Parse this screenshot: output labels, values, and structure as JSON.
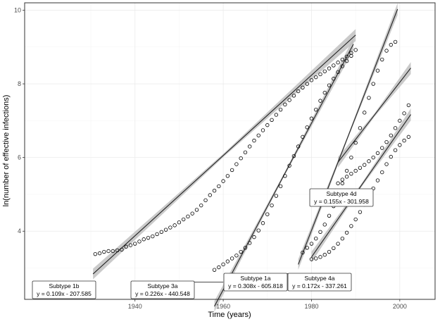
{
  "chart_data": {
    "type": "scatter",
    "title": "",
    "xlabel": "Time (years)",
    "ylabel": "ln(number of effective infections)",
    "xlim": [
      1915,
      2008
    ],
    "ylim": [
      2.15,
      10.2
    ],
    "x_ticks": [
      1940,
      1960,
      1980,
      2000
    ],
    "y_ticks": [
      4,
      6,
      8,
      10
    ],
    "grid": true,
    "legend": "none",
    "series": [
      {
        "name": "Subtype 1b",
        "points": [
          [
            1931,
            3.38
          ],
          [
            1932,
            3.4
          ],
          [
            1933,
            3.44
          ],
          [
            1934,
            3.46
          ],
          [
            1935,
            3.46
          ],
          [
            1936,
            3.48
          ],
          [
            1937,
            3.5
          ],
          [
            1938,
            3.58
          ],
          [
            1939,
            3.62
          ],
          [
            1940,
            3.66
          ],
          [
            1941,
            3.72
          ],
          [
            1942,
            3.78
          ],
          [
            1943,
            3.82
          ],
          [
            1944,
            3.86
          ],
          [
            1945,
            3.92
          ],
          [
            1946,
            3.98
          ],
          [
            1947,
            4.04
          ],
          [
            1948,
            4.1
          ],
          [
            1949,
            4.16
          ],
          [
            1950,
            4.24
          ],
          [
            1951,
            4.32
          ],
          [
            1952,
            4.4
          ],
          [
            1953,
            4.48
          ],
          [
            1954,
            4.58
          ],
          [
            1955,
            4.7
          ],
          [
            1956,
            4.84
          ],
          [
            1957,
            4.98
          ],
          [
            1958,
            5.1
          ],
          [
            1959,
            5.22
          ],
          [
            1960,
            5.36
          ],
          [
            1961,
            5.5
          ],
          [
            1962,
            5.66
          ],
          [
            1963,
            5.82
          ],
          [
            1964,
            5.98
          ],
          [
            1965,
            6.14
          ],
          [
            1966,
            6.3
          ],
          [
            1967,
            6.46
          ],
          [
            1968,
            6.6
          ],
          [
            1969,
            6.74
          ],
          [
            1970,
            6.88
          ],
          [
            1971,
            7.02
          ],
          [
            1972,
            7.16
          ],
          [
            1973,
            7.3
          ],
          [
            1974,
            7.44
          ],
          [
            1975,
            7.56
          ],
          [
            1976,
            7.68
          ],
          [
            1977,
            7.8
          ],
          [
            1978,
            7.9
          ],
          [
            1979,
            8.0
          ],
          [
            1980,
            8.1
          ],
          [
            1981,
            8.18
          ],
          [
            1982,
            8.26
          ],
          [
            1983,
            8.34
          ],
          [
            1984,
            8.42
          ],
          [
            1985,
            8.5
          ],
          [
            1986,
            8.58
          ],
          [
            1987,
            8.66
          ],
          [
            1988,
            8.74
          ],
          [
            1989,
            8.84
          ],
          [
            1990,
            8.92
          ]
        ],
        "fit": {
          "label": "y = 0.109x - 207.585",
          "x_range": [
            1930.5,
            1990
          ]
        }
      },
      {
        "name": "Subtype 3a",
        "points": [
          [
            1958,
            2.95
          ],
          [
            1959,
            3.02
          ],
          [
            1960,
            3.1
          ],
          [
            1961,
            3.18
          ],
          [
            1962,
            3.26
          ],
          [
            1963,
            3.34
          ],
          [
            1964,
            3.44
          ],
          [
            1965,
            3.55
          ],
          [
            1966,
            3.68
          ],
          [
            1967,
            3.84
          ],
          [
            1968,
            4.02
          ],
          [
            1969,
            4.22
          ],
          [
            1970,
            4.46
          ],
          [
            1971,
            4.7
          ],
          [
            1972,
            4.96
          ],
          [
            1973,
            5.22
          ],
          [
            1974,
            5.5
          ],
          [
            1975,
            5.78
          ],
          [
            1976,
            6.04
          ],
          [
            1977,
            6.3
          ],
          [
            1978,
            6.56
          ],
          [
            1979,
            6.82
          ],
          [
            1980,
            7.06
          ],
          [
            1981,
            7.3
          ],
          [
            1982,
            7.54
          ],
          [
            1983,
            7.76
          ],
          [
            1984,
            7.96
          ],
          [
            1985,
            8.14
          ],
          [
            1986,
            8.32
          ],
          [
            1987,
            8.48
          ],
          [
            1988,
            8.62
          ],
          [
            1989,
            8.76
          ]
        ],
        "fit": {
          "label": "y = 0.226x - 440.548",
          "x_range": [
            1958,
            1989.5
          ]
        }
      },
      {
        "name": "Subtype 1a",
        "points": [
          [
            1978,
            3.42
          ],
          [
            1979,
            3.55
          ],
          [
            1980,
            3.66
          ],
          [
            1981,
            3.8
          ],
          [
            1982,
            3.98
          ],
          [
            1983,
            4.18
          ],
          [
            1984,
            4.42
          ],
          [
            1985,
            4.68
          ],
          [
            1986,
            4.98
          ],
          [
            1987,
            5.3
          ],
          [
            1988,
            5.64
          ],
          [
            1989,
            6.0
          ],
          [
            1990,
            6.4
          ],
          [
            1991,
            6.8
          ],
          [
            1992,
            7.22
          ],
          [
            1993,
            7.62
          ],
          [
            1994,
            8.0
          ],
          [
            1995,
            8.36
          ],
          [
            1996,
            8.66
          ],
          [
            1997,
            8.9
          ],
          [
            1998,
            9.06
          ],
          [
            1999,
            9.14
          ]
        ],
        "fit": {
          "label": "y = 0.308x - 605.818",
          "x_range": [
            1977,
            1999.5
          ]
        }
      },
      {
        "name": "Subtype 4d",
        "points": [
          [
            1986,
            5.3
          ],
          [
            1987,
            5.4
          ],
          [
            1988,
            5.48
          ],
          [
            1989,
            5.56
          ],
          [
            1990,
            5.64
          ],
          [
            1991,
            5.72
          ],
          [
            1992,
            5.8
          ],
          [
            1993,
            5.9
          ],
          [
            1994,
            6.0
          ],
          [
            1995,
            6.12
          ],
          [
            1996,
            6.26
          ],
          [
            1997,
            6.42
          ],
          [
            1998,
            6.6
          ],
          [
            1999,
            6.8
          ],
          [
            2000,
            7.0
          ],
          [
            2001,
            7.2
          ],
          [
            2002,
            7.42
          ]
        ],
        "fit": {
          "label": "y = 0.155x - 301.958",
          "x_range": [
            1986,
            2002.5
          ]
        }
      },
      {
        "name": "Subtype 4a",
        "points": [
          [
            1980,
            3.24
          ],
          [
            1981,
            3.26
          ],
          [
            1982,
            3.3
          ],
          [
            1983,
            3.36
          ],
          [
            1984,
            3.44
          ],
          [
            1985,
            3.54
          ],
          [
            1986,
            3.66
          ],
          [
            1987,
            3.8
          ],
          [
            1988,
            3.96
          ],
          [
            1989,
            4.14
          ],
          [
            1990,
            4.32
          ],
          [
            1991,
            4.52
          ],
          [
            1992,
            4.72
          ],
          [
            1993,
            4.94
          ],
          [
            1994,
            5.16
          ],
          [
            1995,
            5.38
          ],
          [
            1996,
            5.6
          ],
          [
            1997,
            5.82
          ],
          [
            1998,
            6.02
          ],
          [
            1999,
            6.2
          ],
          [
            2000,
            6.34
          ],
          [
            2001,
            6.46
          ],
          [
            2002,
            6.56
          ]
        ],
        "fit": {
          "label": "y = 0.172x - 337.261",
          "x_range": [
            1980,
            2002.5
          ]
        }
      }
    ],
    "annotations": [
      {
        "name": "Subtype 1b",
        "label": "y = 0.109x - 207.585",
        "anchor": [
          1930.5,
          2.62
        ]
      },
      {
        "name": "Subtype 3a",
        "label": "y = 0.226x - 440.548",
        "anchor": [
          1960,
          2.62
        ]
      },
      {
        "name": "Subtype 1a",
        "label": "y = 0.308x - 605.818",
        "anchor": [
          1977,
          2.85
        ]
      },
      {
        "name": "Subtype 4a",
        "label": "y = 0.172x - 337.261",
        "anchor": [
          1981,
          2.62
        ]
      },
      {
        "name": "Subtype 4d",
        "label": "y = 0.155x - 301.958",
        "anchor": [
          1986,
          5.0
        ]
      }
    ],
    "colors": {
      "points": "#000000",
      "fit_line": "#222222",
      "ci_band": "#bdbdbd",
      "grid": "#ebebeb"
    }
  }
}
